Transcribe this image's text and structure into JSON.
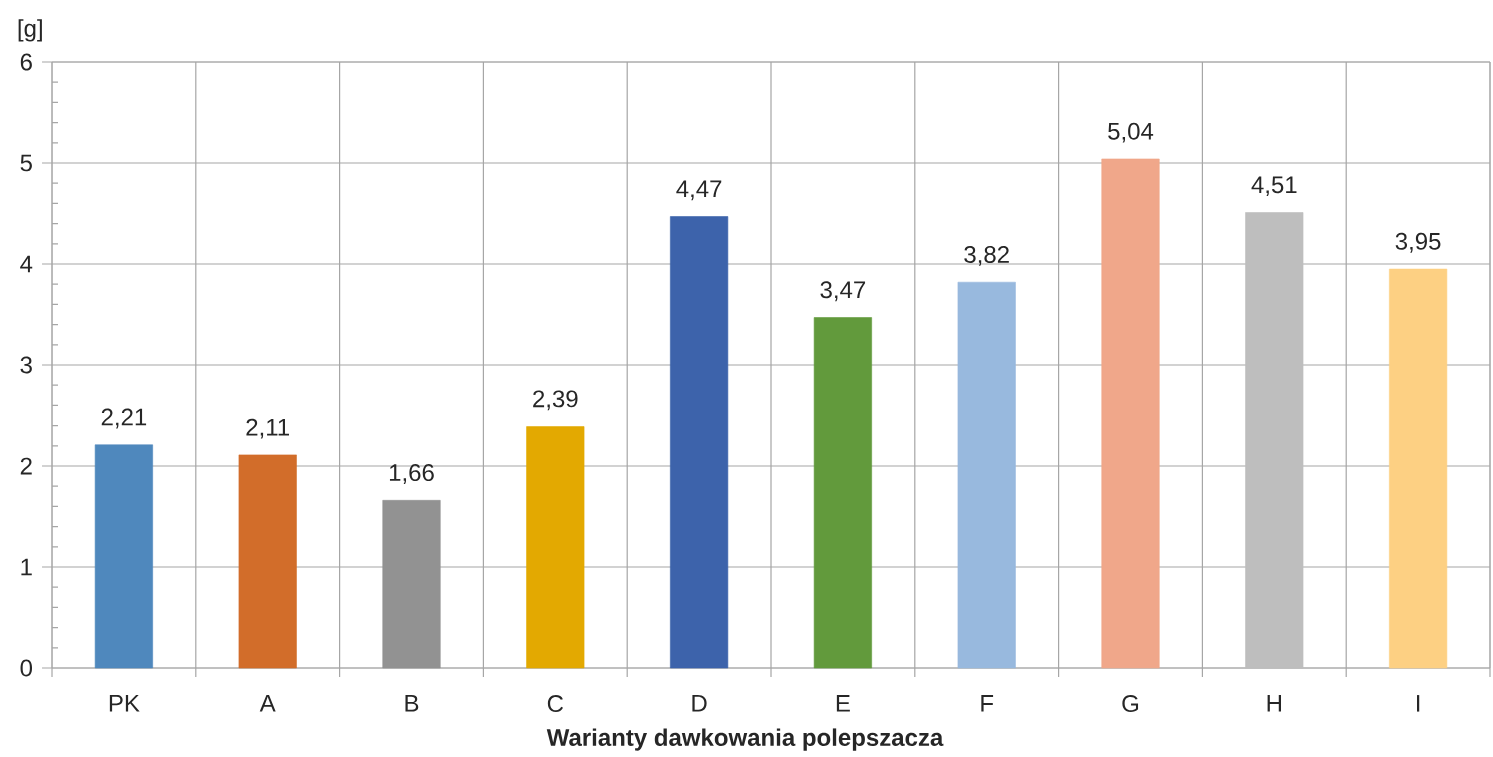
{
  "chart_data": {
    "type": "bar",
    "xlabel": "Warianty dawkowania polepszacza",
    "ylabel": "[g]",
    "categories": [
      "PK",
      "A",
      "B",
      "C",
      "D",
      "E",
      "F",
      "G",
      "H",
      "I"
    ],
    "values": [
      2.21,
      2.11,
      1.66,
      2.39,
      4.47,
      3.47,
      3.82,
      5.04,
      4.51,
      3.95
    ],
    "colors": [
      "#4f88bd",
      "#d26d2a",
      "#929292",
      "#e3a901",
      "#3d63ab",
      "#629a3c",
      "#98b9de",
      "#f0a78a",
      "#bebebe",
      "#fdd083"
    ],
    "value_labels": [
      "2,21",
      "2,11",
      "1,66",
      "2,39",
      "4,47",
      "3,47",
      "3,82",
      "5,04",
      "4,51",
      "3,95"
    ],
    "ylim": [
      0,
      6
    ],
    "yticks": [
      0,
      {
        "value": 0.2,
        "label": null
      },
      {
        "value": 0.4,
        "label": null
      },
      {
        "value": 0.6,
        "label": null
      },
      {
        "value": 0.8,
        "label": null
      },
      1,
      {
        "value": 1.2,
        "label": null
      },
      {
        "value": 1.4,
        "label": null
      },
      {
        "value": 1.6,
        "label": null
      },
      {
        "value": 1.8,
        "label": null
      },
      2,
      {
        "value": 2.2,
        "label": null
      },
      {
        "value": 2.4,
        "label": null
      },
      {
        "value": 2.6,
        "label": null
      },
      {
        "value": 2.8,
        "label": null
      },
      3,
      {
        "value": 3.2,
        "label": null
      },
      {
        "value": 3.4,
        "label": null
      },
      {
        "value": 3.6,
        "label": null
      },
      {
        "value": 3.8,
        "label": null
      },
      4,
      {
        "value": 4.2,
        "label": null
      },
      {
        "value": 4.4,
        "label": null
      },
      {
        "value": 4.6,
        "label": null
      },
      {
        "value": 4.8,
        "label": null
      },
      5,
      {
        "value": 5.2,
        "label": null
      },
      {
        "value": 5.4,
        "label": null
      },
      {
        "value": 5.6,
        "label": null
      },
      {
        "value": 5.8,
        "label": null
      },
      6
    ],
    "grid": true
  }
}
